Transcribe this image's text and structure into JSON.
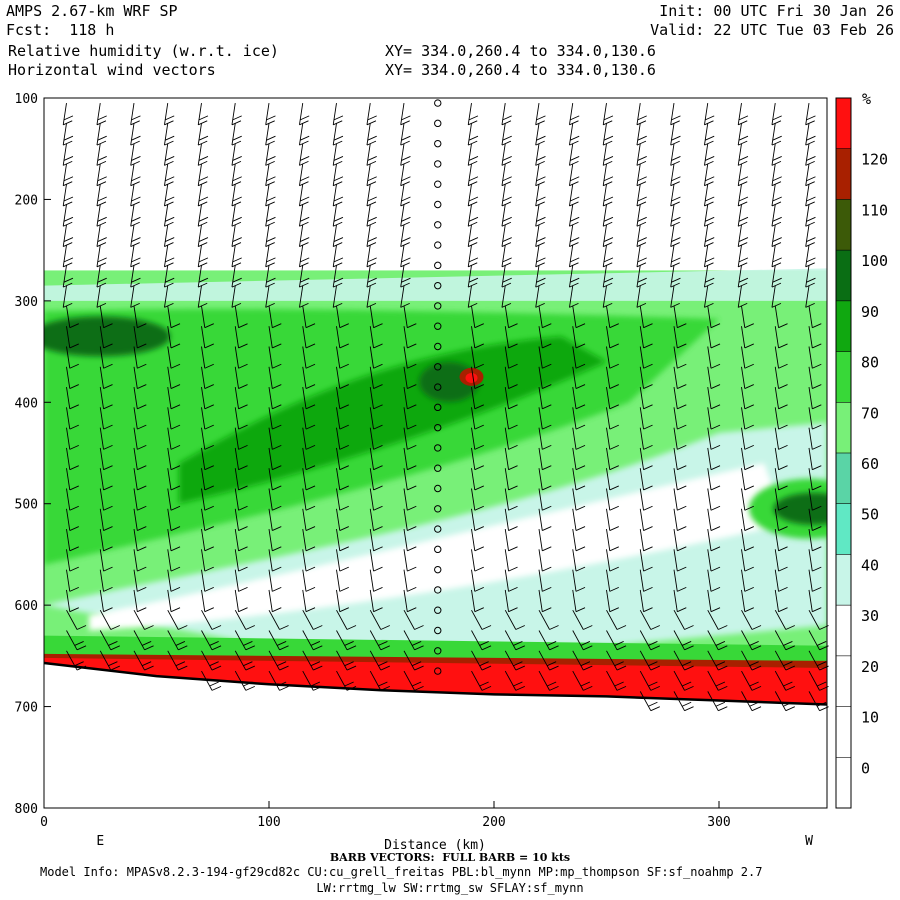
{
  "header": {
    "model": "AMPS 2.67-km WRF SP",
    "forecast": "Fcst:  118 h",
    "field1": "Relative humidity (w.r.t. ice)",
    "field2": "Horizontal wind vectors",
    "init": "Init: 00 UTC Fri 30 Jan 26",
    "valid": "Valid: 22 UTC Tue 03 Feb 26",
    "xy1": "XY= 334.0,260.4 to 334.0,130.6",
    "xy2": "XY= 334.0,260.4 to 334.0,130.6"
  },
  "footer": {
    "barb_note": "BARB VECTORS:  FULL BARB = 10 kts",
    "model_info": "Model Info: MPASv8.2.3-194-gf29cd82c CU:cu_grell_freitas PBL:bl_mynn MP:mp_thompson SF:sf_noahmp 2.7",
    "model_info2": "LW:rrtmg_lw SW:rrtmg_sw SFLAY:sf_mynn"
  },
  "chart_data": {
    "type": "heatmap",
    "title": "Relative humidity (w.r.t. ice)",
    "xlabel": "Distance (km)",
    "ylabel": "",
    "xlim": [
      0,
      348
    ],
    "ylim": [
      800,
      100
    ],
    "x_ticks": [
      0,
      100,
      200,
      300
    ],
    "y_ticks": [
      100,
      200,
      300,
      400,
      500,
      600,
      700,
      800
    ],
    "x_end_labels": {
      "left": "E",
      "right": "W"
    },
    "colorbar": {
      "unit": "%",
      "levels": [
        0,
        10,
        20,
        30,
        40,
        50,
        60,
        70,
        80,
        90,
        100,
        110,
        120
      ],
      "colors": [
        "#ffffff",
        "#ffffff",
        "#ffffff",
        "#ffffff",
        "#c8f5e8",
        "#60e8c4",
        "#5ad4a6",
        "#78f078",
        "#38d838",
        "#10a810",
        "#0a6e14",
        "#3c5a08",
        "#a82000",
        "#ff1010"
      ]
    },
    "terrain_surface_hPa": [
      [
        0,
        657
      ],
      [
        50,
        670
      ],
      [
        100,
        678
      ],
      [
        150,
        684
      ],
      [
        200,
        688
      ],
      [
        250,
        690
      ],
      [
        300,
        694
      ],
      [
        348,
        698
      ]
    ],
    "rh_regions": [
      {
        "name": "upper moist layer",
        "rh_max": 90
      },
      {
        "name": "peak near 190 km / 375 hPa",
        "rh_max": 120
      },
      {
        "name": "dry wedge 30-40%",
        "rh_min": 30
      },
      {
        "name": "surface saturated layer",
        "rh_max": 130
      }
    ],
    "wind_barbs": {
      "columns_km": [
        10,
        25,
        40,
        55,
        70,
        85,
        100,
        115,
        130,
        145,
        160,
        175,
        190,
        205,
        220,
        235,
        250,
        265,
        280,
        295,
        310,
        325,
        340
      ],
      "calm_column_km": 175
    }
  }
}
